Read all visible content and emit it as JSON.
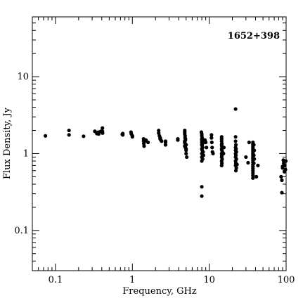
{
  "chart_data": {
    "type": "scatter",
    "title": "1652+398",
    "xlabel": "Frequency, GHz",
    "ylabel": "Flux Density, Jy",
    "xscale": "log",
    "yscale": "log",
    "xlim": [
      0.05,
      100
    ],
    "ylim": [
      0.03,
      60
    ],
    "x_tick_labels": [
      "0.1",
      "1",
      "10",
      "100"
    ],
    "y_tick_labels": [
      "0.1",
      "1",
      "10"
    ],
    "legend": "none",
    "grid": false,
    "series": [
      {
        "points": [
          [
            0.074,
            1.7
          ],
          [
            0.15,
            2.0
          ],
          [
            0.15,
            1.75
          ],
          [
            0.232,
            1.68
          ],
          [
            0.325,
            1.95
          ],
          [
            0.345,
            1.82
          ],
          [
            0.36,
            1.9
          ],
          [
            0.365,
            1.8
          ],
          [
            0.39,
            1.95
          ],
          [
            0.408,
            2.15
          ],
          [
            0.408,
            1.95
          ],
          [
            0.41,
            1.85
          ],
          [
            0.74,
            1.78
          ],
          [
            0.75,
            1.82
          ],
          [
            0.75,
            1.75
          ],
          [
            0.96,
            1.9
          ],
          [
            0.97,
            1.8
          ],
          [
            1.0,
            1.7
          ],
          [
            1.0,
            1.65
          ],
          [
            1.4,
            1.55
          ],
          [
            1.4,
            1.45
          ],
          [
            1.41,
            1.35
          ],
          [
            1.42,
            1.25
          ],
          [
            1.45,
            1.45
          ],
          [
            1.5,
            1.5
          ],
          [
            1.6,
            1.4
          ],
          [
            2.2,
            2.0
          ],
          [
            2.2,
            1.85
          ],
          [
            2.25,
            1.7
          ],
          [
            2.3,
            1.6
          ],
          [
            2.3,
            1.55
          ],
          [
            2.35,
            1.5
          ],
          [
            2.4,
            1.45
          ],
          [
            2.7,
            1.45
          ],
          [
            2.7,
            1.4
          ],
          [
            2.7,
            1.3
          ],
          [
            3.9,
            1.55
          ],
          [
            3.9,
            1.5
          ],
          [
            4.8,
            2.0
          ],
          [
            4.8,
            1.9
          ],
          [
            4.8,
            1.8
          ],
          [
            4.85,
            1.7
          ],
          [
            4.85,
            1.6
          ],
          [
            4.9,
            1.55
          ],
          [
            4.9,
            1.5
          ],
          [
            4.8,
            1.45
          ],
          [
            4.8,
            1.4
          ],
          [
            4.85,
            1.35
          ],
          [
            4.9,
            1.3
          ],
          [
            4.8,
            1.25
          ],
          [
            4.9,
            1.2
          ],
          [
            5.0,
            1.15
          ],
          [
            5.0,
            1.1
          ],
          [
            5.0,
            1.0
          ],
          [
            5.1,
            0.9
          ],
          [
            5.0,
            1.3
          ],
          [
            7.9,
            1.9
          ],
          [
            8.0,
            1.8
          ],
          [
            8.0,
            1.7
          ],
          [
            8.1,
            1.6
          ],
          [
            8.0,
            1.55
          ],
          [
            8.0,
            1.5
          ],
          [
            8.1,
            1.45
          ],
          [
            8.0,
            1.4
          ],
          [
            8.2,
            1.35
          ],
          [
            8.0,
            1.3
          ],
          [
            8.1,
            1.25
          ],
          [
            8.2,
            1.2
          ],
          [
            8.0,
            1.15
          ],
          [
            8.1,
            1.1
          ],
          [
            8.3,
            1.05
          ],
          [
            8.0,
            1.0
          ],
          [
            8.4,
            0.95
          ],
          [
            8.0,
            0.9
          ],
          [
            8.2,
            0.85
          ],
          [
            8.0,
            0.8
          ],
          [
            8.0,
            0.37
          ],
          [
            8.0,
            0.28
          ],
          [
            9.0,
            1.4
          ],
          [
            9.2,
            1.2
          ],
          [
            8.8,
            1.5
          ],
          [
            10.7,
            1.75
          ],
          [
            10.7,
            1.6
          ],
          [
            10.8,
            1.4
          ],
          [
            10.9,
            1.2
          ],
          [
            11.0,
            1.05
          ],
          [
            11.2,
            1.0
          ],
          [
            14.5,
            1.65
          ],
          [
            14.5,
            1.55
          ],
          [
            14.5,
            1.45
          ],
          [
            14.6,
            1.35
          ],
          [
            14.5,
            1.3
          ],
          [
            14.6,
            1.25
          ],
          [
            14.7,
            1.2
          ],
          [
            14.5,
            1.15
          ],
          [
            14.6,
            1.1
          ],
          [
            14.8,
            1.05
          ],
          [
            14.5,
            1.0
          ],
          [
            14.6,
            0.95
          ],
          [
            14.5,
            0.9
          ],
          [
            14.7,
            0.85
          ],
          [
            14.5,
            0.8
          ],
          [
            14.6,
            0.75
          ],
          [
            14.5,
            0.7
          ],
          [
            15.5,
            1.2
          ],
          [
            15.3,
            1.0
          ],
          [
            22.0,
            3.8
          ],
          [
            22.0,
            1.65
          ],
          [
            22.0,
            1.45
          ],
          [
            22.2,
            1.3
          ],
          [
            22.0,
            1.2
          ],
          [
            22.3,
            1.15
          ],
          [
            22.0,
            1.1
          ],
          [
            22.5,
            1.05
          ],
          [
            22.0,
            1.0
          ],
          [
            22.2,
            0.95
          ],
          [
            22.0,
            0.9
          ],
          [
            22.5,
            0.85
          ],
          [
            22.0,
            0.8
          ],
          [
            22.2,
            0.75
          ],
          [
            22.0,
            0.7
          ],
          [
            22.5,
            0.65
          ],
          [
            22.2,
            0.6
          ],
          [
            23.0,
            0.72
          ],
          [
            30.0,
            0.9
          ],
          [
            32.0,
            0.76
          ],
          [
            33.0,
            1.4
          ],
          [
            37.0,
            1.4
          ],
          [
            37.0,
            1.33
          ],
          [
            37.0,
            1.26
          ],
          [
            37.0,
            1.2
          ],
          [
            37.0,
            1.14
          ],
          [
            37.0,
            1.08
          ],
          [
            37.0,
            1.02
          ],
          [
            37.0,
            0.97
          ],
          [
            37.0,
            0.92
          ],
          [
            37.0,
            0.87
          ],
          [
            37.0,
            0.82
          ],
          [
            37.0,
            0.77
          ],
          [
            37.0,
            0.72
          ],
          [
            37.0,
            0.68
          ],
          [
            37.0,
            0.64
          ],
          [
            37.0,
            0.6
          ],
          [
            37.0,
            0.56
          ],
          [
            37.0,
            0.52
          ],
          [
            37.0,
            0.48
          ],
          [
            38.0,
            1.3
          ],
          [
            38.5,
            1.1
          ],
          [
            38.0,
            0.95
          ],
          [
            38.5,
            0.85
          ],
          [
            38.0,
            0.75
          ],
          [
            41.0,
            0.5
          ],
          [
            43.0,
            0.7
          ],
          [
            86.0,
            0.5
          ],
          [
            88.0,
            0.45
          ],
          [
            88.0,
            0.31
          ],
          [
            90.0,
            0.68
          ],
          [
            90.0,
            0.65
          ],
          [
            92.0,
            0.82
          ],
          [
            93.0,
            0.75
          ],
          [
            95.0,
            0.58
          ],
          [
            96.0,
            0.7
          ],
          [
            98.0,
            0.62
          ],
          [
            99.0,
            0.8
          ]
        ]
      }
    ]
  }
}
